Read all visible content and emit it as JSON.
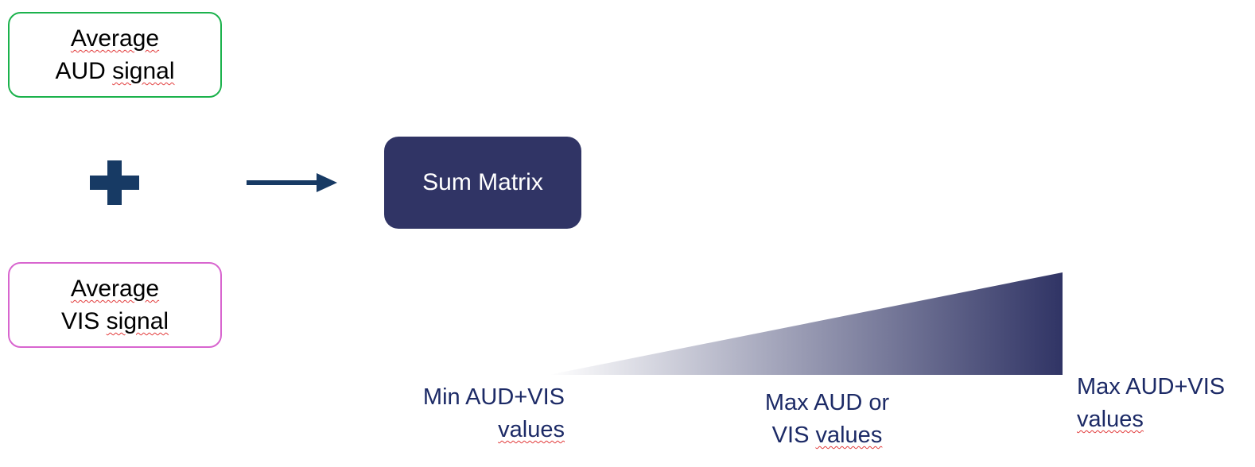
{
  "inputs": {
    "aud": {
      "line1": "Average",
      "line2_a": "AUD ",
      "line2_b": "signal",
      "border_color": "#1bb24c"
    },
    "vis": {
      "line1": "Average",
      "line2_a": "VIS ",
      "line2_b": "signal",
      "border_color": "#d865cf"
    }
  },
  "operator": {
    "icon": "plus-icon",
    "color": "#173a64"
  },
  "flow": {
    "icon": "arrow-right-icon",
    "color": "#173a64"
  },
  "output": {
    "label": "Sum Matrix",
    "fill_color": "#303465"
  },
  "scale": {
    "gradient_start_color": "#ffffff",
    "gradient_end_color": "#303465",
    "min_label": {
      "line1": "Min AUD+VIS",
      "line2": "values"
    },
    "mid_label": {
      "line1": "Max AUD or",
      "line2_a": "VIS ",
      "line2_b": "values"
    },
    "max_label": {
      "line1": "Max AUD+VIS",
      "line2": "values"
    }
  }
}
